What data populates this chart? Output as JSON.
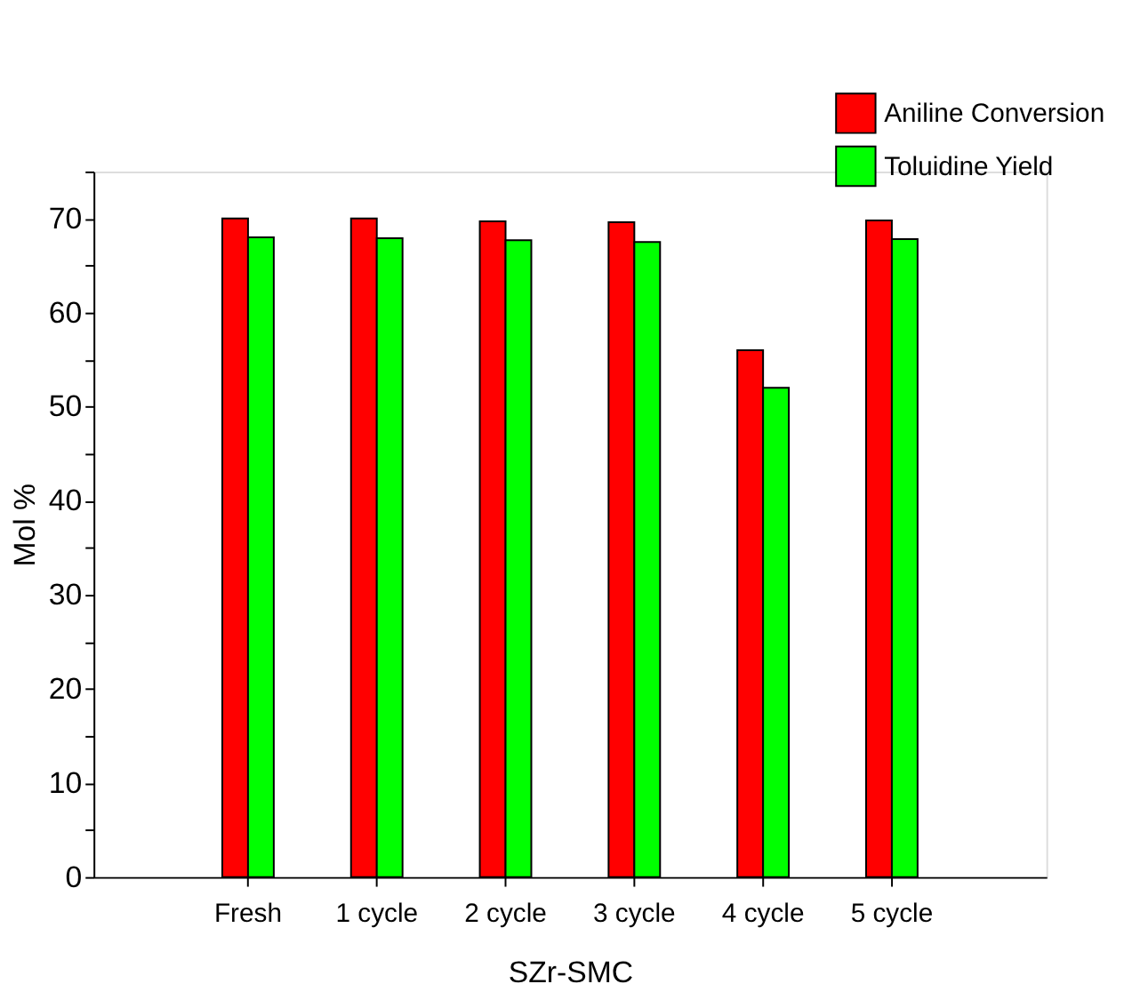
{
  "chart_data": {
    "type": "bar",
    "xlabel": "SZr-SMC",
    "ylabel": "Mol %",
    "categories": [
      "Fresh",
      "1 cycle",
      "2 cycle",
      "3 cycle",
      "4 cycle",
      "5 cycle"
    ],
    "series": [
      {
        "name": "Aniline Conversion",
        "color": "#ff0000",
        "values": [
          70.0,
          70.0,
          69.7,
          69.6,
          56.0,
          69.8
        ]
      },
      {
        "name": "Toluidine Yield",
        "color": "#00ff00",
        "values": [
          68.0,
          67.9,
          67.7,
          67.5,
          52.0,
          67.8
        ]
      }
    ],
    "ylim": [
      0,
      75
    ],
    "yticks": [
      0,
      {
        "value": 5,
        "label": null
      },
      10,
      {
        "value": 15,
        "label": null
      },
      20,
      {
        "value": 25,
        "label": null
      },
      30,
      {
        "value": 35,
        "label": null
      },
      40,
      {
        "value": 45,
        "label": null
      },
      50,
      {
        "value": 55,
        "label": null
      },
      60,
      {
        "value": 65,
        "label": null
      },
      70,
      {
        "value": 75,
        "label": null
      }
    ],
    "grid": false,
    "legend": "top right"
  }
}
